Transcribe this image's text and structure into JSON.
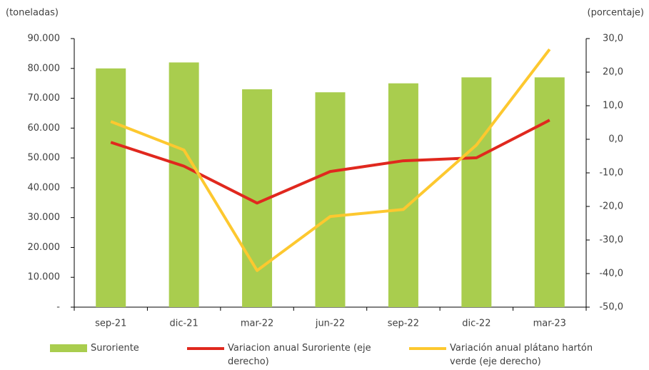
{
  "chart_data": {
    "type": "bar-line",
    "ylabel": "(toneladas)",
    "y2label": "(porcentaje)",
    "categories": [
      "sep-21",
      "dic-21",
      "mar-22",
      "jun-22",
      "sep-22",
      "dic-22",
      "mar-23"
    ],
    "series": [
      {
        "name": "Suroriente",
        "type": "bar",
        "color": "#a9cd4e",
        "values": [
          80000,
          82000,
          73000,
          72000,
          75000,
          77000,
          77000
        ]
      },
      {
        "name": "Variacion anual Suroriente (eje derecho)",
        "type": "line",
        "axis": "y2",
        "color": "#e0281e",
        "values": [
          -0.9,
          -8,
          -19,
          -9.6,
          -6.4,
          -5.5,
          5.7
        ]
      },
      {
        "name": "Variación anual plátano hartón verde (eje derecho)",
        "type": "line",
        "axis": "y2",
        "color": "#fdc82f",
        "values": [
          5.3,
          -3.2,
          -39.1,
          -23,
          -20.9,
          -1.7,
          26.8
        ]
      }
    ],
    "ylim": [
      0,
      90000
    ],
    "yticks": [
      {
        "value": 0,
        "label": "-"
      },
      {
        "value": 10000,
        "label": "10.000"
      },
      {
        "value": 20000,
        "label": "20.000"
      },
      {
        "value": 30000,
        "label": "30.000"
      },
      {
        "value": 40000,
        "label": "40.000"
      },
      {
        "value": 50000,
        "label": "50.000"
      },
      {
        "value": 60000,
        "label": "60.000"
      },
      {
        "value": 70000,
        "label": "70.000"
      },
      {
        "value": 80000,
        "label": "80.000"
      },
      {
        "value": 90000,
        "label": "90.000"
      }
    ],
    "y2lim": [
      -50,
      30
    ],
    "y2ticks": [
      {
        "value": -50,
        "label": "-50,0"
      },
      {
        "value": -40,
        "label": "-40,0"
      },
      {
        "value": -30,
        "label": "-30,0"
      },
      {
        "value": -20,
        "label": "-20,0"
      },
      {
        "value": -10,
        "label": "-10,0"
      },
      {
        "value": 0,
        "label": "0,0"
      },
      {
        "value": 10,
        "label": "10,0"
      },
      {
        "value": 20,
        "label": "20,0"
      },
      {
        "value": 30,
        "label": "30,0"
      }
    ]
  }
}
